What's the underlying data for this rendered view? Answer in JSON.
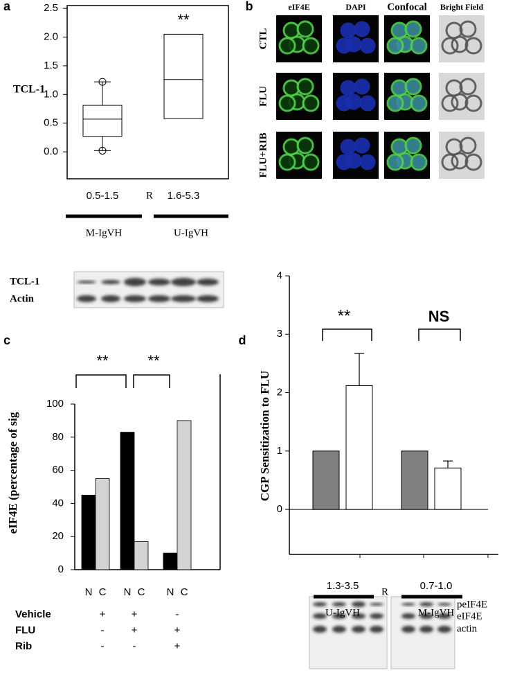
{
  "chart_data": [
    {
      "panel": "a",
      "type": "box",
      "ylabel": "TCL-1",
      "categories": [
        "0.5-1.5",
        "1.6-5.3"
      ],
      "separator": "R",
      "annotation": "**",
      "groups": [
        "M-IgVH",
        "U-IgVH"
      ],
      "boxes": [
        {
          "low": 0.02,
          "q1": 0.27,
          "median": 0.57,
          "q3": 0.81,
          "high": 1.22
        },
        {
          "q1": 0.58,
          "median": 1.26,
          "q3": 2.05
        }
      ],
      "ylim": [
        -0.47,
        2.55
      ],
      "yticks": [
        {
          "value": 0,
          "label": "0.0"
        },
        0.5,
        {
          "value": 1,
          "label": "1.0"
        },
        1.5,
        {
          "value": 2,
          "label": "2.0"
        },
        2.5
      ]
    },
    {
      "panel": "c",
      "type": "bar",
      "ylabel": "eIF4E (percentage of sig",
      "annotations": [
        "**",
        "**"
      ],
      "series": [
        {
          "name": "N",
          "color": "#000000",
          "values": [
            45,
            83,
            10
          ]
        },
        {
          "name": "C",
          "color": "#d3d3d3",
          "values": [
            55,
            17,
            90
          ]
        }
      ],
      "conditions": [
        {
          "name": "Vehicle",
          "signs": [
            "+",
            "+",
            "-"
          ]
        },
        {
          "name": "FLU",
          "signs": [
            "-",
            "+",
            "+"
          ]
        },
        {
          "name": "Rib",
          "signs": [
            "-",
            "-",
            "+"
          ]
        }
      ],
      "ylim": [
        0,
        100
      ],
      "yticks": [
        0,
        20,
        40,
        60,
        80,
        100
      ]
    },
    {
      "panel": "d",
      "type": "bar",
      "ylabel": "CGP Sensitization to FLU",
      "categories": [
        "1.3-3.5",
        "0.7-1.0"
      ],
      "separator": "R",
      "groups": [
        "U-IgVH",
        "M-IgVH"
      ],
      "annotations": [
        "**",
        "NS"
      ],
      "series": [
        {
          "color": "#808080",
          "values": [
            1,
            1
          ]
        },
        {
          "color": "#ffffff",
          "values": [
            2.12,
            0.71
          ],
          "errors": [
            0.55,
            0.12
          ]
        }
      ],
      "ylim": [
        -0.77,
        4
      ],
      "yticks": [
        0,
        1,
        2,
        3,
        4
      ]
    }
  ],
  "micrographs": {
    "panel": "b",
    "columns": [
      "eIF4E",
      "DAPI",
      "Confocal",
      "Bright Field"
    ],
    "rows": [
      "CTL",
      "FLU",
      "FLU+RIB"
    ]
  },
  "blots": [
    {
      "labels": [
        "TCL-1",
        "Actin"
      ]
    },
    {
      "labels": [
        "peIF4E",
        "eIF4E",
        "actin"
      ]
    }
  ]
}
